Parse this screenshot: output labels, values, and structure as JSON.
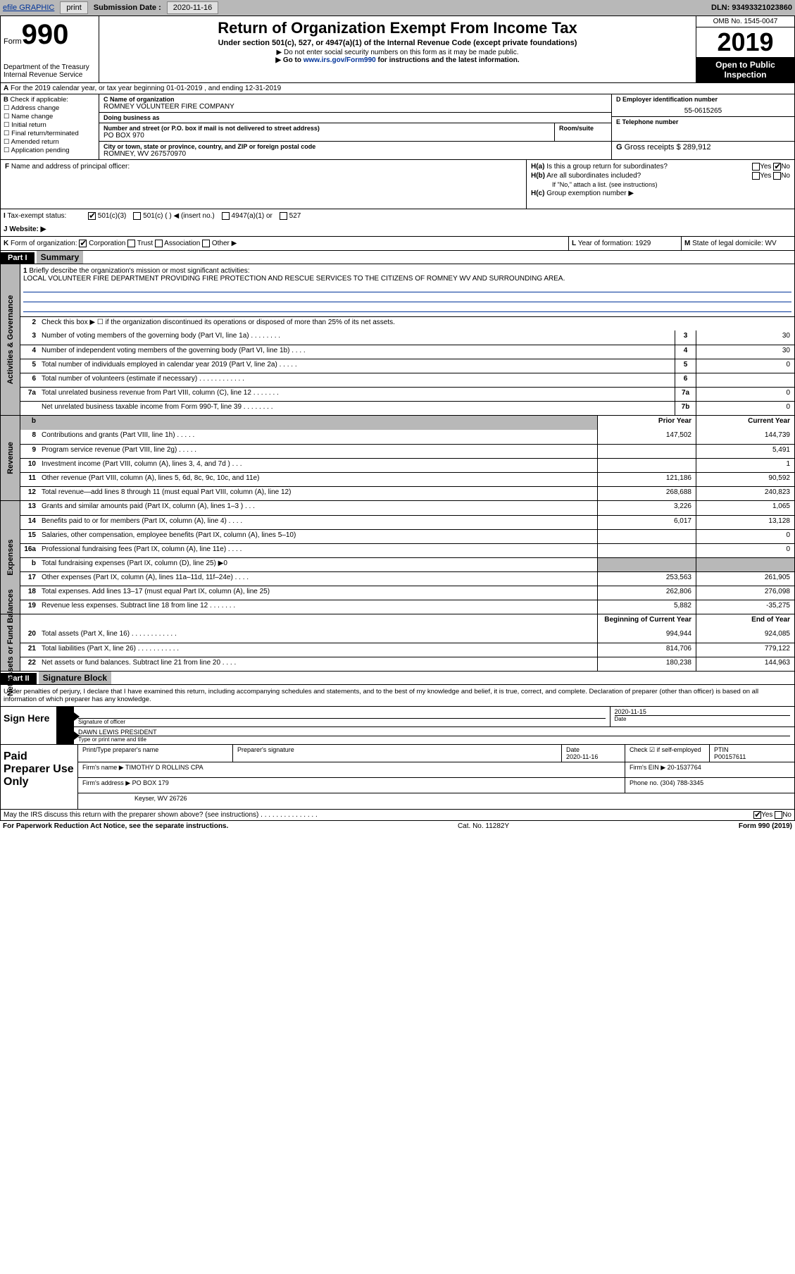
{
  "topbar": {
    "efile": "efile GRAPHIC",
    "print": "print",
    "subdate_label": "Submission Date :",
    "subdate": "2020-11-16",
    "dln_label": "DLN:",
    "dln": "93493321023860"
  },
  "header": {
    "form_word": "Form",
    "form_num": "990",
    "dept": "Department of the Treasury\nInternal Revenue Service",
    "title": "Return of Organization Exempt From Income Tax",
    "sub": "Under section 501(c), 527, or 4947(a)(1) of the Internal Revenue Code (except private foundations)",
    "note1": "Do not enter social security numbers on this form as it may be made public.",
    "goto_pre": "Go to ",
    "goto_link": "www.irs.gov/Form990",
    "goto_post": " for instructions and the latest information.",
    "omb": "OMB No. 1545-0047",
    "year": "2019",
    "open": "Open to Public Inspection"
  },
  "lineA": "For the 2019 calendar year, or tax year beginning 01-01-2019    , and ending 12-31-2019",
  "colB": {
    "label": "Check if applicable:",
    "items": [
      "Address change",
      "Name change",
      "Initial return",
      "Final return/terminated",
      "Amended return",
      "Application pending"
    ]
  },
  "colC": {
    "name_label": "Name of organization",
    "name": "ROMNEY VOLUNTEER FIRE COMPANY",
    "dba_label": "Doing business as",
    "addr_label": "Number and street (or P.O. box if mail is not delivered to street address)",
    "suite_label": "Room/suite",
    "addr": "PO BOX 970",
    "city_label": "City or town, state or province, country, and ZIP or foreign postal code",
    "city": "ROMNEY, WV  267570970"
  },
  "colD": {
    "ein_label": "Employer identification number",
    "ein": "55-0615265",
    "phone_label": "Telephone number",
    "gross_label": "Gross receipts $",
    "gross": "289,912"
  },
  "rowF": {
    "label": "Name and address of principal officer:"
  },
  "rowH": {
    "ha": "Is this a group return for subordinates?",
    "hb": "Are all subordinates included?",
    "hb_note": "If \"No,\" attach a list. (see instructions)",
    "hc": "Group exemption number ▶",
    "yes": "Yes",
    "no": "No"
  },
  "status": {
    "label": "Tax-exempt status:",
    "opt1": "501(c)(3)",
    "opt2": "501(c) (    ) ◀ (insert no.)",
    "opt3": "4947(a)(1) or",
    "opt4": "527"
  },
  "website": {
    "label": "Website: ▶"
  },
  "rowK": {
    "label": "Form of organization:",
    "opts": [
      "Corporation",
      "Trust",
      "Association",
      "Other ▶"
    ]
  },
  "rowL": {
    "label": "Year of formation:",
    "val": "1929"
  },
  "rowM": {
    "label": "State of legal domicile:",
    "val": "WV"
  },
  "parts": {
    "p1": "Part I",
    "p1_title": "Summary",
    "p2": "Part II",
    "p2_title": "Signature Block"
  },
  "sides": {
    "gov": "Activities & Governance",
    "rev": "Revenue",
    "exp": "Expenses",
    "net": "Net Assets or Fund Balances"
  },
  "summary": {
    "l1_label": "Briefly describe the organization's mission or most significant activities:",
    "l1_text": "LOCAL VOLUNTEER FIRE DEPARTMENT PROVIDING FIRE PROTECTION AND RESCUE SERVICES TO THE CITIZENS OF ROMNEY WV AND SURROUNDING AREA.",
    "l2": "Check this box ▶ ☐  if the organization discontinued its operations or disposed of more than 25% of its net assets.",
    "prior_hdr": "Prior Year",
    "curr_hdr": "Current Year",
    "beg_hdr": "Beginning of Current Year",
    "end_hdr": "End of Year",
    "rows_gov": [
      {
        "n": "3",
        "d": "Number of voting members of the governing body (Part VI, line 1a)   .    .    .    .    .    .    .    .",
        "b": "3",
        "v": "30"
      },
      {
        "n": "4",
        "d": "Number of independent voting members of the governing body (Part VI, line 1b)   .    .    .    .",
        "b": "4",
        "v": "30"
      },
      {
        "n": "5",
        "d": "Total number of individuals employed in calendar year 2019 (Part V, line 2a)   .    .    .    .    .",
        "b": "5",
        "v": "0"
      },
      {
        "n": "6",
        "d": "Total number of volunteers (estimate if necessary)    .    .    .    .    .    .    .    .    .    .    .    .",
        "b": "6",
        "v": ""
      },
      {
        "n": "7a",
        "d": "Total unrelated business revenue from Part VIII, column (C), line 12   .    .    .    .    .    .    .",
        "b": "7a",
        "v": "0"
      },
      {
        "n": "",
        "d": "Net unrelated business taxable income from Form 990-T, line 39    .    .    .    .    .    .    .    .",
        "b": "7b",
        "v": "0"
      }
    ],
    "rows_rev": [
      {
        "n": "8",
        "d": "Contributions and grants (Part VIII, line 1h)    .    .    .    .    .",
        "p": "147,502",
        "c": "144,739"
      },
      {
        "n": "9",
        "d": "Program service revenue (Part VIII, line 2g)    .    .    .    .    .",
        "p": "",
        "c": "5,491"
      },
      {
        "n": "10",
        "d": "Investment income (Part VIII, column (A), lines 3, 4, and 7d )    .    .    .",
        "p": "",
        "c": "1"
      },
      {
        "n": "11",
        "d": "Other revenue (Part VIII, column (A), lines 5, 6d, 8c, 9c, 10c, and 11e)",
        "p": "121,186",
        "c": "90,592"
      },
      {
        "n": "12",
        "d": "Total revenue—add lines 8 through 11 (must equal Part VIII, column (A), line 12)",
        "p": "268,688",
        "c": "240,823"
      }
    ],
    "rows_exp": [
      {
        "n": "13",
        "d": "Grants and similar amounts paid (Part IX, column (A), lines 1–3 )   .    .    .",
        "p": "3,226",
        "c": "1,065"
      },
      {
        "n": "14",
        "d": "Benefits paid to or for members (Part IX, column (A), line 4)   .    .    .    .",
        "p": "6,017",
        "c": "13,128"
      },
      {
        "n": "15",
        "d": "Salaries, other compensation, employee benefits (Part IX, column (A), lines 5–10)",
        "p": "",
        "c": "0"
      },
      {
        "n": "16a",
        "d": "Professional fundraising fees (Part IX, column (A), line 11e)   .    .    .    .",
        "p": "",
        "c": "0"
      },
      {
        "n": "b",
        "d": "Total fundraising expenses (Part IX, column (D), line 25) ▶0",
        "p": "shade",
        "c": "shade"
      },
      {
        "n": "17",
        "d": "Other expenses (Part IX, column (A), lines 11a–11d, 11f–24e)   .    .    .    .",
        "p": "253,563",
        "c": "261,905"
      },
      {
        "n": "18",
        "d": "Total expenses. Add lines 13–17 (must equal Part IX, column (A), line 25)",
        "p": "262,806",
        "c": "276,098"
      },
      {
        "n": "19",
        "d": "Revenue less expenses. Subtract line 18 from line 12   .    .    .    .    .    .    .",
        "p": "5,882",
        "c": "-35,275"
      }
    ],
    "rows_net": [
      {
        "n": "20",
        "d": "Total assets (Part X, line 16)   .    .    .    .    .    .    .    .    .    .    .    .",
        "p": "994,944",
        "c": "924,085"
      },
      {
        "n": "21",
        "d": "Total liabilities (Part X, line 26)   .    .    .    .    .    .    .    .    .    .    .",
        "p": "814,706",
        "c": "779,122"
      },
      {
        "n": "22",
        "d": "Net assets or fund balances. Subtract line 21 from line 20   .    .    .    .",
        "p": "180,238",
        "c": "144,963"
      }
    ]
  },
  "sig": {
    "declare": "Under penalties of perjury, I declare that I have examined this return, including accompanying schedules and statements, and to the best of my knowledge and belief, it is true, correct, and complete. Declaration of preparer (other than officer) is based on all information of which preparer has any knowledge.",
    "sign_here": "Sign Here",
    "sig_of": "Signature of officer",
    "date": "Date",
    "sig_date": "2020-11-15",
    "officer": "DAWN LEWIS  PRESIDENT",
    "type_name": "Type or print name and title",
    "paid": "Paid Preparer Use Only",
    "prep_name_label": "Print/Type preparer's name",
    "prep_sig_label": "Preparer's signature",
    "prep_date": "2020-11-16",
    "check_self": "Check ☑ if self-employed",
    "ptin_label": "PTIN",
    "ptin": "P00157611",
    "firm_name_label": "Firm's name    ▶",
    "firm_name": "TIMOTHY D ROLLINS CPA",
    "firm_ein_label": "Firm's EIN ▶",
    "firm_ein": "20-1537764",
    "firm_addr_label": "Firm's address ▶",
    "firm_addr": "PO BOX 179",
    "firm_city": "Keyser, WV  26726",
    "phone_label": "Phone no.",
    "phone": "(304) 788-3345",
    "discuss": "May the IRS discuss this return with the preparer shown above? (see instructions)   .    .    .    .    .    .    .    .    .    .    .    .    .    .    .",
    "yes": "Yes",
    "no": "No"
  },
  "footer": {
    "pra": "For Paperwork Reduction Act Notice, see the separate instructions.",
    "cat": "Cat. No. 11282Y",
    "form": "Form 990 (2019)"
  },
  "letters": {
    "A": "A",
    "B": "B",
    "C": "C",
    "D": "D",
    "E": "E",
    "F": "F",
    "G": "G",
    "H_a": "H(a)",
    "H_b": "H(b)",
    "H_c": "H(c)",
    "I": "I",
    "J": "J",
    "K": "K",
    "L": "L",
    "M": "M"
  }
}
